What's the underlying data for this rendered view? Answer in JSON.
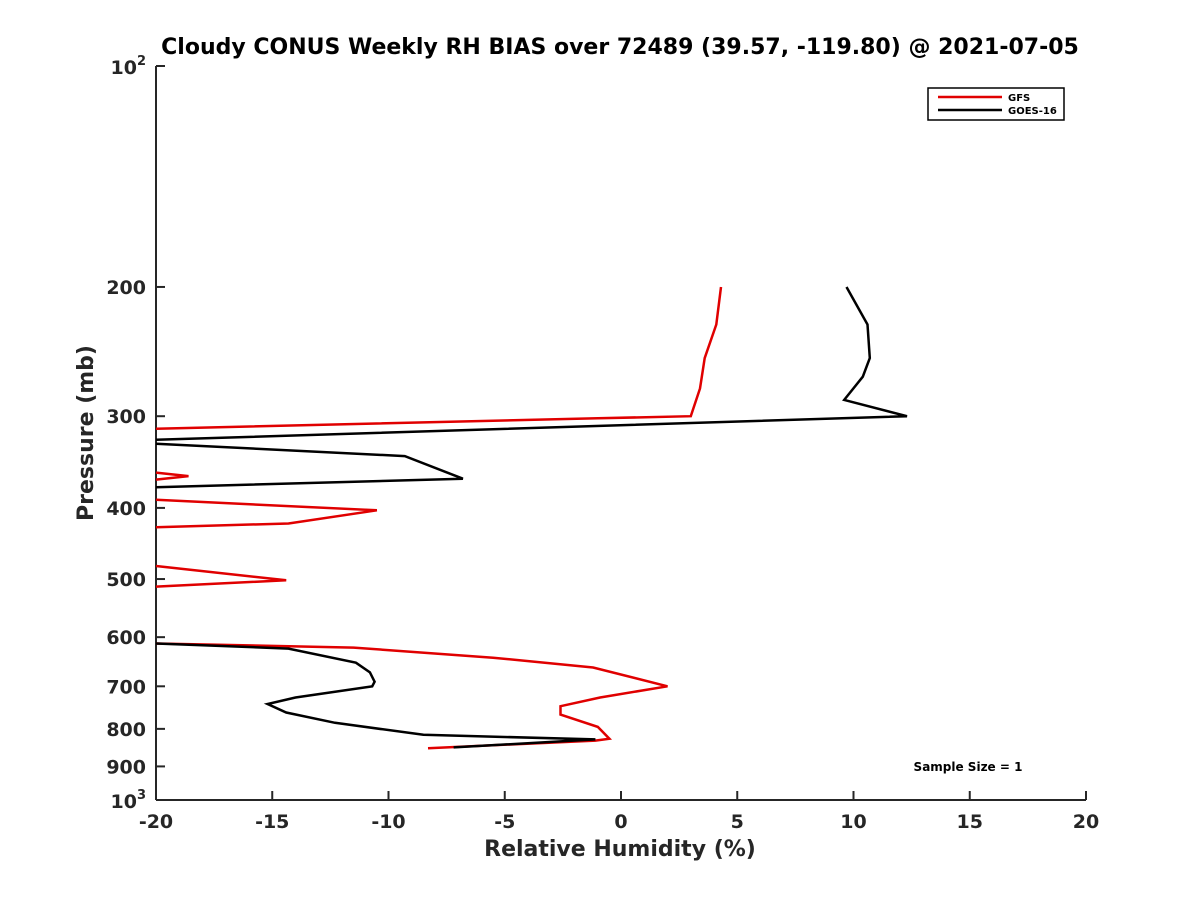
{
  "chart_data": {
    "type": "line",
    "title": "Cloudy CONUS Weekly RH BIAS over 72489 (39.57, -119.80) @ 2021-07-05",
    "xlabel": "Relative Humidity (%)",
    "ylabel": "Pressure (mb)",
    "xlim": [
      -20,
      20
    ],
    "ylim": [
      100,
      1000
    ],
    "y_scale": "log",
    "y_reversed": true,
    "grid": false,
    "legend_position": "top-right",
    "x_ticks": [
      -20,
      -15,
      -10,
      -5,
      0,
      5,
      10,
      15,
      20
    ],
    "x_tick_labels": [
      "-20",
      "-15",
      "-10",
      "-5",
      "0",
      "5",
      "10",
      "15",
      "20"
    ],
    "y_ticks": [
      200,
      300,
      400,
      500,
      600,
      700,
      800,
      900
    ],
    "y_tick_labels": [
      "200",
      "300",
      "400",
      "500",
      "600",
      "700",
      "800",
      "900"
    ],
    "y_decade_labels": [
      {
        "value": 100,
        "base": "10",
        "exp": "2"
      },
      {
        "value": 1000,
        "base": "10",
        "exp": "3"
      }
    ],
    "annotation": "Sample Size = 1",
    "series": [
      {
        "name": "GFS",
        "color": "#e00000",
        "points": [
          [
            4.3,
            200
          ],
          [
            4.1,
            225
          ],
          [
            3.6,
            250
          ],
          [
            3.4,
            275
          ],
          [
            3.0,
            300
          ],
          [
            -1.0,
            302
          ],
          [
            -20,
            312
          ],
          [
            null,
            null
          ],
          [
            -20,
            358
          ],
          [
            -18.6,
            362
          ],
          [
            -20,
            366
          ],
          [
            null,
            null
          ],
          [
            -20,
            390
          ],
          [
            -10.5,
            403
          ],
          [
            -14.3,
            420
          ],
          [
            -20,
            425
          ],
          [
            null,
            null
          ],
          [
            -20,
            480
          ],
          [
            -14.4,
            502
          ],
          [
            -20,
            512
          ],
          [
            null,
            null
          ],
          [
            -20,
            612
          ],
          [
            -11.5,
            620
          ],
          [
            -5.5,
            640
          ],
          [
            -1.2,
            660
          ],
          [
            2.0,
            700
          ],
          [
            -0.9,
            725
          ],
          [
            -2.6,
            745
          ],
          [
            -2.6,
            765
          ],
          [
            -1.0,
            795
          ],
          [
            -0.5,
            825
          ],
          [
            -1.1,
            830
          ],
          [
            -8.3,
            850
          ]
        ]
      },
      {
        "name": "GOES-16",
        "color": "#000000",
        "points": [
          [
            9.7,
            200
          ],
          [
            10.6,
            225
          ],
          [
            10.7,
            250
          ],
          [
            10.4,
            265
          ],
          [
            9.6,
            285
          ],
          [
            12.3,
            300
          ],
          [
            -20,
            323
          ],
          [
            null,
            null
          ],
          [
            -20,
            327
          ],
          [
            -9.3,
            340
          ],
          [
            -6.8,
            365
          ],
          [
            -20,
            375
          ],
          [
            null,
            null
          ],
          [
            -20,
            612
          ],
          [
            -14.3,
            622
          ],
          [
            -11.4,
            650
          ],
          [
            -10.8,
            670
          ],
          [
            -10.6,
            690
          ],
          [
            -10.7,
            700
          ],
          [
            -14.0,
            725
          ],
          [
            -15.2,
            740
          ],
          [
            -14.4,
            760
          ],
          [
            -12.3,
            785
          ],
          [
            -8.5,
            815
          ],
          [
            -1.1,
            827
          ],
          [
            -7.2,
            848
          ]
        ]
      }
    ]
  }
}
